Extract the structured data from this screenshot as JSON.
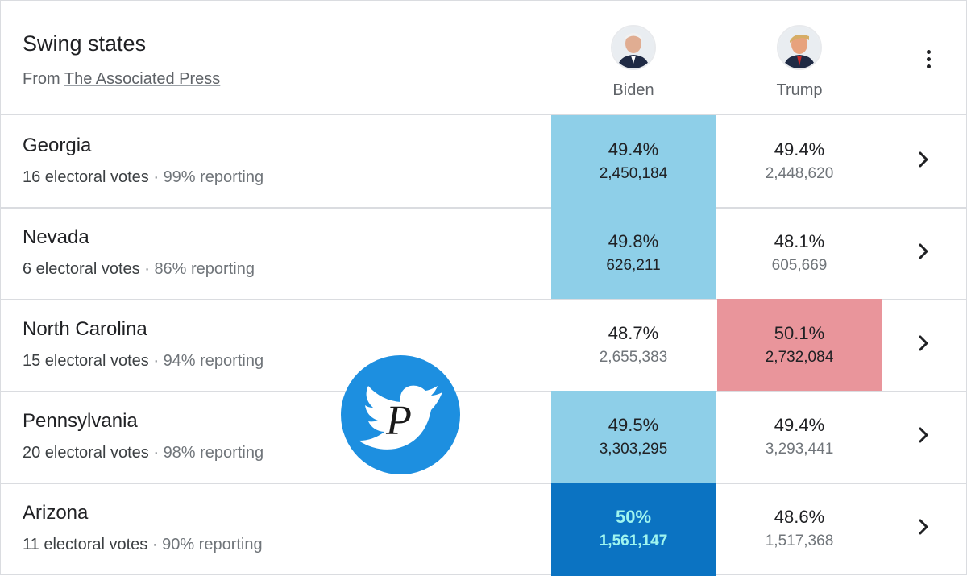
{
  "header": {
    "title": "Swing states",
    "source_prefix": "From",
    "source_link": "The Associated Press",
    "more_icon": "more-vert-icon"
  },
  "candidates": [
    {
      "name": "Biden",
      "win_color_light": "#8ecfe8",
      "win_color_dark": "#0b73c2"
    },
    {
      "name": "Trump",
      "win_color": "#e9959b"
    }
  ],
  "rows": [
    {
      "state": "Georgia",
      "electoral": "16 electoral votes",
      "reporting": "99% reporting",
      "biden_pct": "49.4%",
      "biden_votes": "2,450,184",
      "trump_pct": "49.4%",
      "trump_votes": "2,448,620",
      "leader": "biden-light"
    },
    {
      "state": "Nevada",
      "electoral": "6 electoral votes",
      "reporting": "86% reporting",
      "biden_pct": "49.8%",
      "biden_votes": "626,211",
      "trump_pct": "48.1%",
      "trump_votes": "605,669",
      "leader": "biden-light"
    },
    {
      "state": "North Carolina",
      "electoral": "15 electoral votes",
      "reporting": "94% reporting",
      "biden_pct": "48.7%",
      "biden_votes": "2,655,383",
      "trump_pct": "50.1%",
      "trump_votes": "2,732,084",
      "leader": "trump"
    },
    {
      "state": "Pennsylvania",
      "electoral": "20 electoral votes",
      "reporting": "98% reporting",
      "biden_pct": "49.5%",
      "biden_votes": "3,303,295",
      "trump_pct": "49.4%",
      "trump_votes": "3,293,441",
      "leader": "biden-light"
    },
    {
      "state": "Arizona",
      "electoral": "11 electoral votes",
      "reporting": "90% reporting",
      "biden_pct": "50%",
      "biden_votes": "1,561,147",
      "trump_pct": "48.6%",
      "trump_votes": "1,517,368",
      "leader": "biden-dark"
    }
  ],
  "separator": "·",
  "watermark": {
    "icon": "twitter-bird-icon",
    "letter": "P",
    "color": "#1d8fe0"
  }
}
